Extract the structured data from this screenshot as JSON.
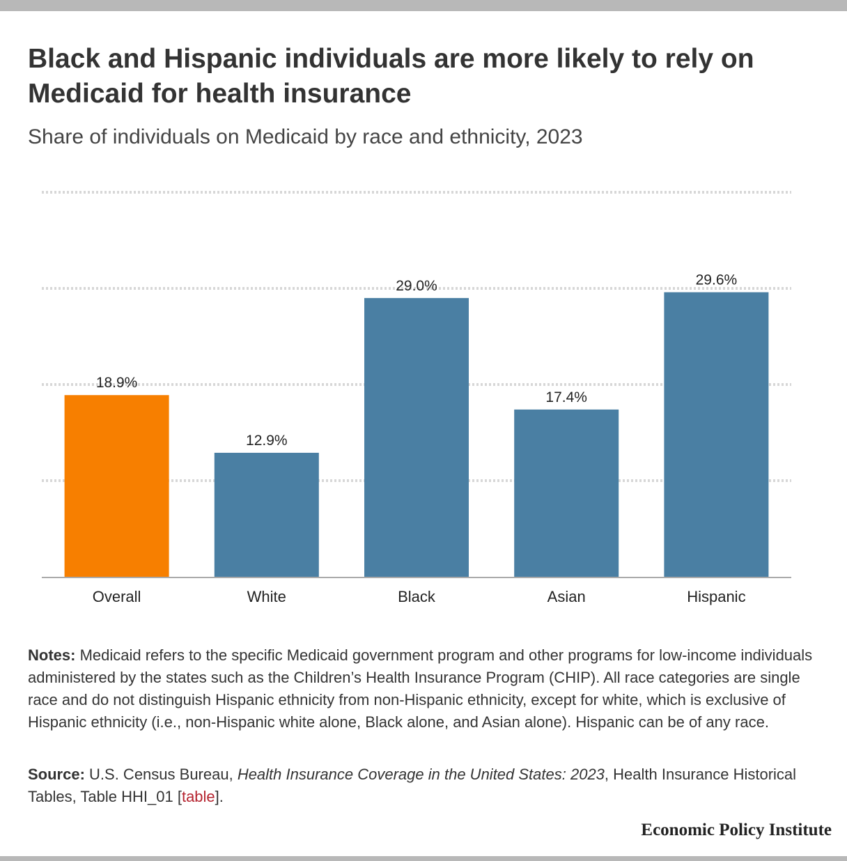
{
  "header": {
    "title": "Black and Hispanic individuals are more likely to rely on Medicaid for health insurance",
    "subtitle": "Share of individuals on Medicaid by race and ethnicity, 2023"
  },
  "chart_data": {
    "type": "bar",
    "categories": [
      "Overall",
      "White",
      "Black",
      "Asian",
      "Hispanic"
    ],
    "values": [
      18.9,
      12.9,
      29.0,
      17.4,
      29.6
    ],
    "value_labels": [
      "18.9%",
      "12.9%",
      "29.0%",
      "17.4%",
      "29.6%"
    ],
    "ylim": [
      0,
      40
    ],
    "grid": true,
    "colors": {
      "highlight": "#f77f00",
      "default": "#4a7fa3",
      "grid": "#d7d7d7",
      "axis": "#aaaaaa"
    },
    "highlight_index": 0
  },
  "notes": {
    "label": "Notes:",
    "text": " Medicaid refers to the specific Medicaid government program and other programs for low-income individuals administered by the states such as the Children’s Health Insurance Program (CHIP). All race categories are single race and do not distinguish Hispanic ethnicity from non-Hispanic ethnicity, except for white, which is exclusive of Hispanic ethnicity (i.e., non-Hispanic white alone, Black alone, and Asian alone). Hispanic can be of any race."
  },
  "source": {
    "label": "Source:",
    "text_before": " U.S. Census Bureau, ",
    "title": "Health Insurance Coverage in the United States: 2023",
    "text_after": ", Health Insurance Historical Tables, Table HHI_01 [",
    "link": "table",
    "text_end": "]."
  },
  "footer": {
    "brand": "Economic Policy Institute"
  }
}
